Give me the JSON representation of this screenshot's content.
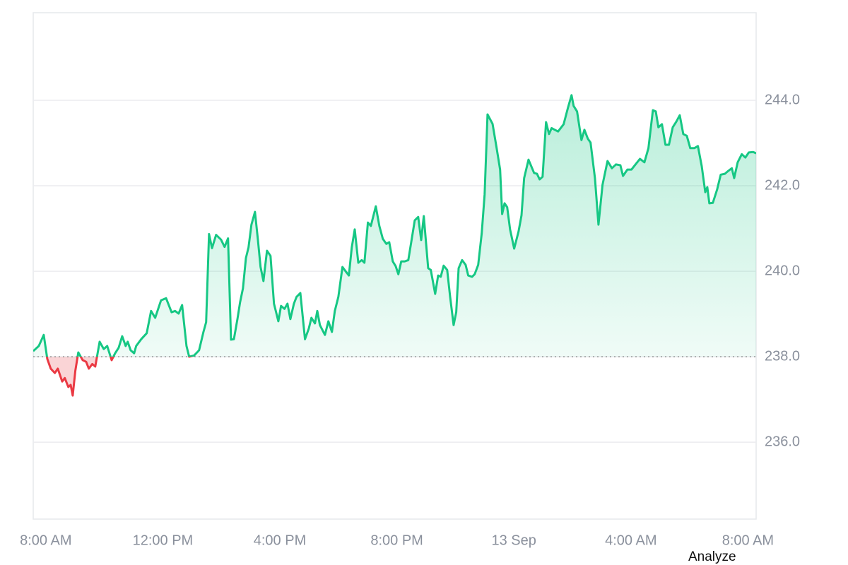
{
  "chart_data": {
    "type": "line",
    "x": [
      -0.43,
      -0.24,
      -0.07,
      0.05,
      0.17,
      0.31,
      0.41,
      0.56,
      0.65,
      0.77,
      0.85,
      0.92,
      1.01,
      1.11,
      1.26,
      1.38,
      1.47,
      1.59,
      1.69,
      1.84,
      1.98,
      2.1,
      2.25,
      2.37,
      2.49,
      2.61,
      2.73,
      2.8,
      2.9,
      3.02,
      3.09,
      3.26,
      3.45,
      3.6,
      3.74,
      3.94,
      4.11,
      4.3,
      4.42,
      4.54,
      4.66,
      4.81,
      4.9,
      5.07,
      5.24,
      5.39,
      5.48,
      5.58,
      5.68,
      5.82,
      5.99,
      6.11,
      6.23,
      6.33,
      6.43,
      6.55,
      6.64,
      6.74,
      6.84,
      6.93,
      7.03,
      7.15,
      7.25,
      7.34,
      7.44,
      7.56,
      7.68,
      7.8,
      7.95,
      8.04,
      8.16,
      8.26,
      8.36,
      8.48,
      8.57,
      8.7,
      8.86,
      8.99,
      9.08,
      9.2,
      9.28,
      9.37,
      9.54,
      9.66,
      9.78,
      9.88,
      10.0,
      10.14,
      10.27,
      10.36,
      10.46,
      10.56,
      10.68,
      10.8,
      10.89,
      11.01,
      11.11,
      11.28,
      11.4,
      11.52,
      11.64,
      11.74,
      11.86,
      11.96,
      12.05,
      12.15,
      12.27,
      12.39,
      12.51,
      12.61,
      12.73,
      12.83,
      12.92,
      13.07,
      13.16,
      13.31,
      13.41,
      13.5,
      13.6,
      13.72,
      13.82,
      13.94,
      14.03,
      14.11,
      14.23,
      14.35,
      14.44,
      14.57,
      14.66,
      14.78,
      14.9,
      15.0,
      15.1,
      15.27,
      15.41,
      15.53,
      15.6,
      15.68,
      15.77,
      15.87,
      16.01,
      16.16,
      16.26,
      16.35,
      16.5,
      16.69,
      16.79,
      16.88,
      16.98,
      17.1,
      17.2,
      17.29,
      17.51,
      17.7,
      17.85,
      17.97,
      18.04,
      18.16,
      18.31,
      18.41,
      18.53,
      18.62,
      18.77,
      18.89,
      19.03,
      19.2,
      19.35,
      19.49,
      19.64,
      19.73,
      19.88,
      20.02,
      20.17,
      20.31,
      20.46,
      20.6,
      20.75,
      20.85,
      20.94,
      21.06,
      21.18,
      21.3,
      21.43,
      21.55,
      21.67,
      21.79,
      21.91,
      22.03,
      22.17,
      22.29,
      22.42,
      22.54,
      22.61,
      22.68,
      22.8,
      22.95,
      23.07,
      23.21,
      23.33,
      23.45,
      23.53,
      23.65,
      23.79,
      23.91,
      24.03,
      24.18,
      24.28
    ],
    "values": [
      238.13,
      238.25,
      238.51,
      237.95,
      237.72,
      237.62,
      237.72,
      237.42,
      237.5,
      237.29,
      237.34,
      237.09,
      237.67,
      238.1,
      237.92,
      237.88,
      237.72,
      237.83,
      237.77,
      238.35,
      238.18,
      238.25,
      237.92,
      238.08,
      238.21,
      238.48,
      238.25,
      238.35,
      238.15,
      238.08,
      238.25,
      238.41,
      238.55,
      239.07,
      238.91,
      239.32,
      239.37,
      239.04,
      239.07,
      239.01,
      239.21,
      238.25,
      238.0,
      238.03,
      238.15,
      238.58,
      238.81,
      240.87,
      240.54,
      240.85,
      240.74,
      240.57,
      240.77,
      238.4,
      238.41,
      238.88,
      239.27,
      239.6,
      240.31,
      240.56,
      241.09,
      241.39,
      240.73,
      240.1,
      239.77,
      240.48,
      240.36,
      239.24,
      238.83,
      239.19,
      239.12,
      239.24,
      238.88,
      239.24,
      239.4,
      239.49,
      238.41,
      238.66,
      238.91,
      238.78,
      239.07,
      238.74,
      238.51,
      238.83,
      238.58,
      239.07,
      239.4,
      240.1,
      239.98,
      239.9,
      240.56,
      240.98,
      240.2,
      240.26,
      240.2,
      241.14,
      241.06,
      241.52,
      241.06,
      240.76,
      240.64,
      240.68,
      240.23,
      240.12,
      239.93,
      240.23,
      240.23,
      240.26,
      240.76,
      241.19,
      241.27,
      240.73,
      241.29,
      240.07,
      240.03,
      239.47,
      239.9,
      239.87,
      240.13,
      240.03,
      239.4,
      238.74,
      239.04,
      240.07,
      240.26,
      240.15,
      239.9,
      239.87,
      239.93,
      240.15,
      240.89,
      241.8,
      243.67,
      243.45,
      242.88,
      242.38,
      241.34,
      241.59,
      241.5,
      240.98,
      240.53,
      240.93,
      241.31,
      242.18,
      242.61,
      242.3,
      242.28,
      242.15,
      242.21,
      243.49,
      243.21,
      243.35,
      243.27,
      243.44,
      243.83,
      244.12,
      243.87,
      243.74,
      243.07,
      243.31,
      243.1,
      243.01,
      242.18,
      241.09,
      242.02,
      242.58,
      242.41,
      242.5,
      242.48,
      242.23,
      242.38,
      242.38,
      242.51,
      242.63,
      242.55,
      242.88,
      243.77,
      243.74,
      243.37,
      243.44,
      242.96,
      242.96,
      243.37,
      243.5,
      243.65,
      243.21,
      243.17,
      242.88,
      242.88,
      242.93,
      242.46,
      241.85,
      241.97,
      241.59,
      241.6,
      241.92,
      242.26,
      242.28,
      242.35,
      242.41,
      242.18,
      242.55,
      242.74,
      242.66,
      242.78,
      242.79,
      242.76
    ],
    "baseline": 238,
    "color_up": "#16c784",
    "color_down": "#ea3943",
    "xlim": [
      -0.43,
      24.28
    ],
    "xticks": [
      {
        "value": 0,
        "label": "8:00 AM"
      },
      {
        "value": 4,
        "label": "12:00 PM"
      },
      {
        "value": 8,
        "label": "4:00 PM"
      },
      {
        "value": 12,
        "label": "8:00 PM"
      },
      {
        "value": 16,
        "label": "13 Sep"
      },
      {
        "value": 20,
        "label": "4:00 AM"
      },
      {
        "value": 24,
        "label": "8:00 AM"
      }
    ],
    "ylim": [
      234.2,
      246.05
    ],
    "yticks": [
      {
        "value": 236,
        "label": "236.0"
      },
      {
        "value": 238,
        "label": "238.0"
      },
      {
        "value": 240,
        "label": "240.0"
      },
      {
        "value": 242,
        "label": "242.0"
      },
      {
        "value": 244,
        "label": "244.0"
      }
    ],
    "grid": true
  },
  "analyze_button": "Analyze"
}
